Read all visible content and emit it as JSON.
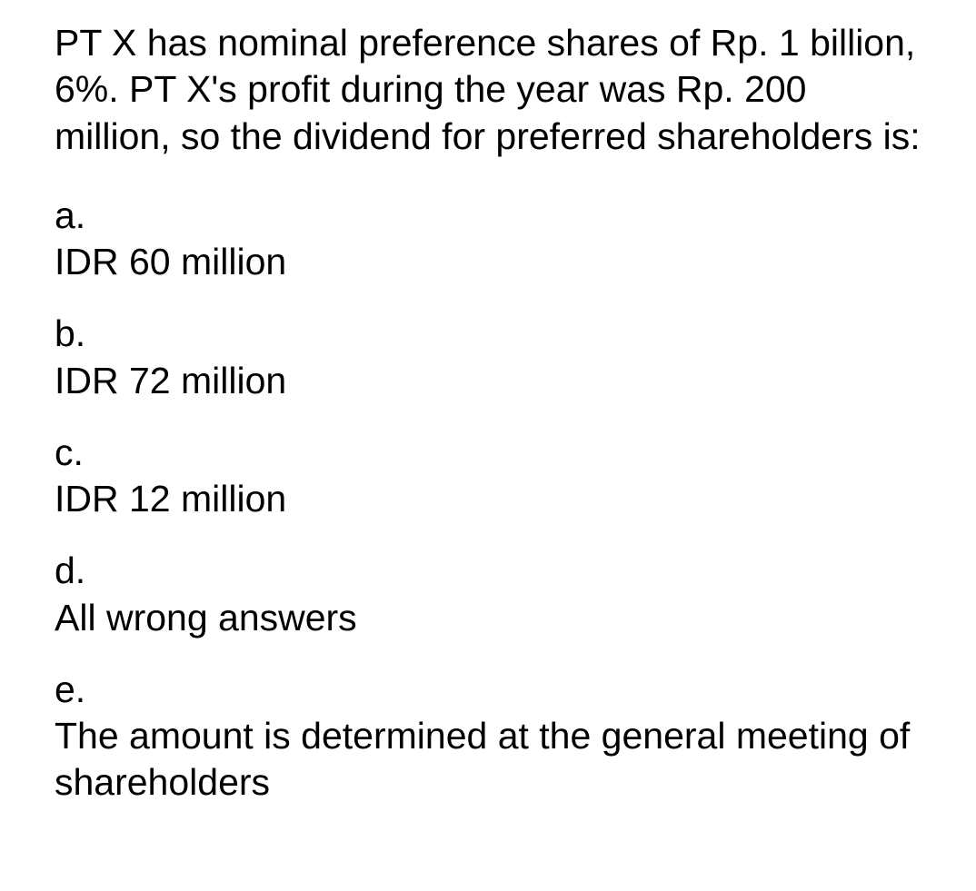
{
  "question": {
    "text": "PT X has nominal preference shares of Rp. 1 billion, 6%. PT X's profit during the year was Rp. 200 million, so the dividend for preferred shareholders is:"
  },
  "options": [
    {
      "letter": "a.",
      "text": "IDR 60 million"
    },
    {
      "letter": "b.",
      "text": "IDR 72 million"
    },
    {
      "letter": "c.",
      "text": "IDR 12 million"
    },
    {
      "letter": "d.",
      "text": "All wrong answers"
    },
    {
      "letter": "e.",
      "text": "The amount is determined at the general meeting of shareholders"
    }
  ],
  "colors": {
    "background": "#ffffff",
    "text": "#000000"
  },
  "typography": {
    "font_size_pt": 31,
    "line_height": 1.25,
    "font_weight": 400
  }
}
